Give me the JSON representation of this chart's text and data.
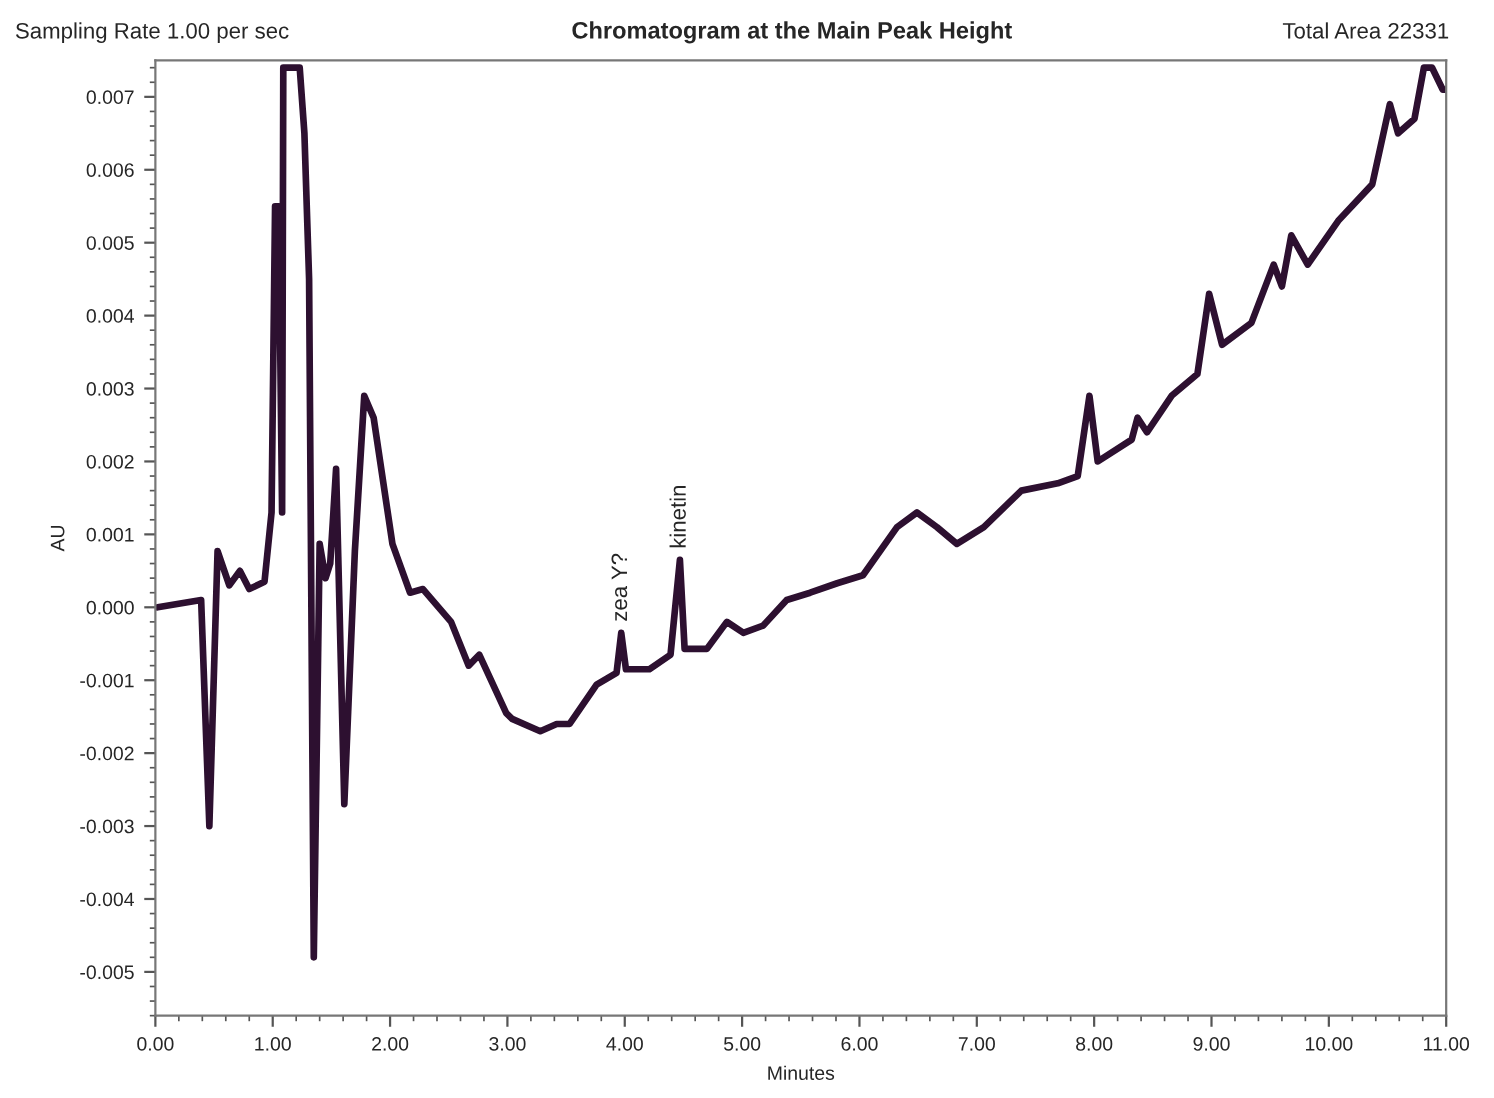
{
  "chart_data": {
    "type": "line",
    "title": "Chromatogram at the Main Peak Height",
    "xlabel": "Minutes",
    "ylabel": "AU",
    "annotations": [
      "Sampling Rate 1.00 per sec",
      "Total Area 22331",
      {
        "text": "zea Y?",
        "x": 3.97,
        "y": -0.00035
      },
      {
        "text": "kinetin",
        "x": 4.47,
        "y": 0.00065
      }
    ],
    "series": [
      {
        "color": "#2d1030",
        "x": [
          0.02,
          0.39,
          0.46,
          0.53,
          0.63,
          0.72,
          0.8,
          0.93,
          0.99,
          1.02,
          1.05,
          1.08,
          1.09,
          1.23,
          1.27,
          1.31,
          1.35,
          1.4,
          1.45,
          1.49,
          1.54,
          1.61,
          1.7,
          1.78,
          1.86,
          2.02,
          2.17,
          2.28,
          2.52,
          2.67,
          2.76,
          2.99,
          3.04,
          3.28,
          3.42,
          3.53,
          3.76,
          3.93,
          3.97,
          4.01,
          4.21,
          4.39,
          4.47,
          4.51,
          4.7,
          4.87,
          5.01,
          5.18,
          5.38,
          5.58,
          5.81,
          6.03,
          6.32,
          6.49,
          6.66,
          6.83,
          7.06,
          7.38,
          7.69,
          7.86,
          7.96,
          8.03,
          8.32,
          8.37,
          8.45,
          8.66,
          8.88,
          8.98,
          9.09,
          9.34,
          9.53,
          9.6,
          9.68,
          9.82,
          10.08,
          10.37,
          10.52,
          10.59,
          10.73,
          10.81,
          10.88,
          10.97,
          11.0
        ],
        "values": [
          0.0,
          0.0001,
          -0.003,
          0.00077,
          0.0003,
          0.0005,
          0.00025,
          0.00035,
          0.0013,
          0.0055,
          0.0055,
          0.0013,
          0.0074,
          0.0074,
          0.0065,
          0.0045,
          -0.0048,
          0.00087,
          0.0004,
          0.0006,
          0.0019,
          -0.0027,
          0.00077,
          0.0029,
          0.0026,
          0.00087,
          0.0002,
          0.00025,
          -0.0002,
          -0.0008,
          -0.00065,
          -0.00145,
          -0.00153,
          -0.0017,
          -0.0016,
          -0.0016,
          -0.00106,
          -0.0009,
          -0.00035,
          -0.00085,
          -0.00085,
          -0.00065,
          0.00065,
          -0.00057,
          -0.00057,
          -0.0002,
          -0.00035,
          -0.00025,
          0.0001,
          0.0002,
          0.00033,
          0.00044,
          0.0011,
          0.0013,
          0.0011,
          0.00087,
          0.0011,
          0.0016,
          0.0017,
          0.0018,
          0.0029,
          0.002,
          0.0023,
          0.0026,
          0.0024,
          0.0029,
          0.0032,
          0.0043,
          0.0036,
          0.0039,
          0.0047,
          0.0044,
          0.0051,
          0.0047,
          0.0053,
          0.0058,
          0.0069,
          0.0065,
          0.0067,
          0.0074,
          0.0074,
          0.0071,
          0.0071
        ]
      }
    ],
    "xlim": [
      0,
      11
    ],
    "ylim": [
      -0.0056,
      0.0075
    ],
    "xticks": [
      {
        "value": 0,
        "label": "0.00"
      },
      {
        "value": 1,
        "label": "1.00"
      },
      {
        "value": 2,
        "label": "2.00"
      },
      {
        "value": 3,
        "label": "3.00"
      },
      {
        "value": 4,
        "label": "4.00"
      },
      {
        "value": 5,
        "label": "5.00"
      },
      {
        "value": 6,
        "label": "6.00"
      },
      {
        "value": 7,
        "label": "7.00"
      },
      {
        "value": 8,
        "label": "8.00"
      },
      {
        "value": 9,
        "label": "9.00"
      },
      {
        "value": 10,
        "label": "10.00"
      },
      {
        "value": 11,
        "label": "11.00"
      }
    ],
    "yticks": [
      {
        "value": -0.005,
        "label": "-0.005"
      },
      {
        "value": -0.004,
        "label": "-0.004"
      },
      {
        "value": -0.003,
        "label": "-0.003"
      },
      {
        "value": -0.002,
        "label": "-0.002"
      },
      {
        "value": -0.001,
        "label": "-0.001"
      },
      {
        "value": 0,
        "label": "0.000"
      },
      {
        "value": 0.001,
        "label": "0.001"
      },
      {
        "value": 0.002,
        "label": "0.002"
      },
      {
        "value": 0.003,
        "label": "0.003"
      },
      {
        "value": 0.004,
        "label": "0.004"
      },
      {
        "value": 0.005,
        "label": "0.005"
      },
      {
        "value": 0.006,
        "label": "0.006"
      },
      {
        "value": 0.007,
        "label": "0.007"
      }
    ],
    "grid": false,
    "marker": "none",
    "line_style": "solid"
  }
}
